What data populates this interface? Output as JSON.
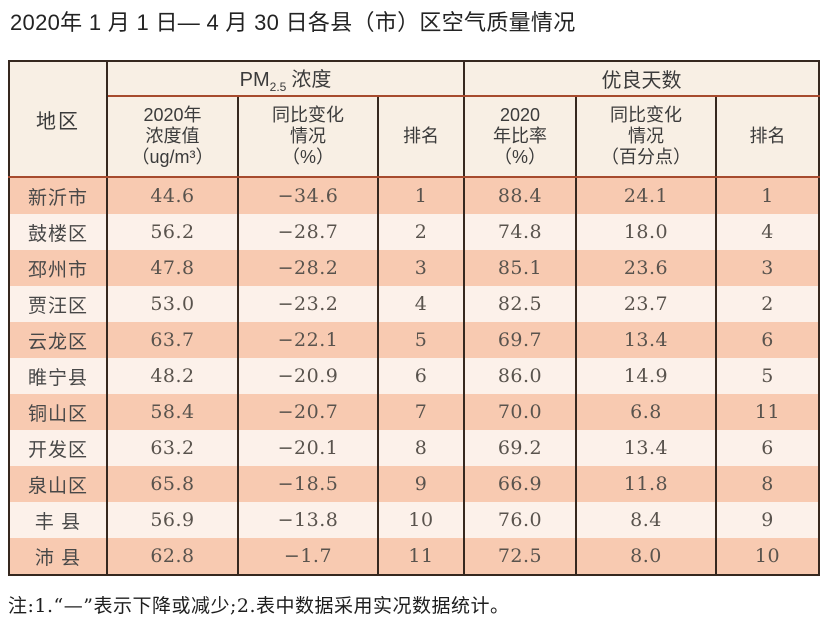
{
  "chart_data": {
    "type": "table",
    "title": "2020年 1 月 1 日— 4 月 30 日各县（市）区空气质量情况",
    "column_groups": [
      "PM2.5 浓度",
      "优良天数"
    ],
    "columns": [
      "地区",
      "2020年浓度值（ug/m³）",
      "同比变化情况（%）",
      "排名",
      "2020年比率（%）",
      "同比变化情况（百分点）",
      "排名"
    ],
    "rows": [
      [
        "新沂市",
        "44.6",
        "-34.6",
        "1",
        "88.4",
        "24.1",
        "1"
      ],
      [
        "鼓楼区",
        "56.2",
        "-28.7",
        "2",
        "74.8",
        "18.0",
        "4"
      ],
      [
        "邳州市",
        "47.8",
        "-28.2",
        "3",
        "85.1",
        "23.6",
        "3"
      ],
      [
        "贾汪区",
        "53.0",
        "-23.2",
        "4",
        "82.5",
        "23.7",
        "2"
      ],
      [
        "云龙区",
        "63.7",
        "-22.1",
        "5",
        "69.7",
        "13.4",
        "6"
      ],
      [
        "睢宁县",
        "48.2",
        "-20.9",
        "6",
        "86.0",
        "14.9",
        "5"
      ],
      [
        "铜山区",
        "58.4",
        "-20.7",
        "7",
        "70.0",
        "6.8",
        "11"
      ],
      [
        "开发区",
        "63.2",
        "-20.1",
        "8",
        "69.2",
        "13.4",
        "6"
      ],
      [
        "泉山区",
        "65.8",
        "-18.5",
        "9",
        "66.9",
        "11.8",
        "8"
      ],
      [
        "丰 县",
        "56.9",
        "-13.8",
        "10",
        "76.0",
        "8.4",
        "9"
      ],
      [
        "沛 县",
        "62.8",
        "-1.7",
        "11",
        "72.5",
        "8.0",
        "10"
      ]
    ],
    "note": "注:1.“—”表示下降或减少;2.表中数据采用实况数据统计。"
  },
  "header": {
    "region": "地区",
    "pm_group": {
      "prefix": "PM",
      "sub": "2.5",
      "suffix": "浓度"
    },
    "rate_group": "优良天数",
    "pm_value": "2020年\n浓度值\n（ug/m³）",
    "pm_change": "同比变化\n情况\n（%）",
    "pm_rank": "排名",
    "rate_value": "2020\n年比率\n（%）",
    "rate_change": "同比变化\n情况\n（百分点）",
    "rate_rank": "排名"
  },
  "colors": {
    "row_salmon": "#f8cab1",
    "row_cream": "#fcf1ea",
    "header_bg": "#f8efe4",
    "grid_dark": "#36281f",
    "divider_red": "#a74b2e"
  }
}
